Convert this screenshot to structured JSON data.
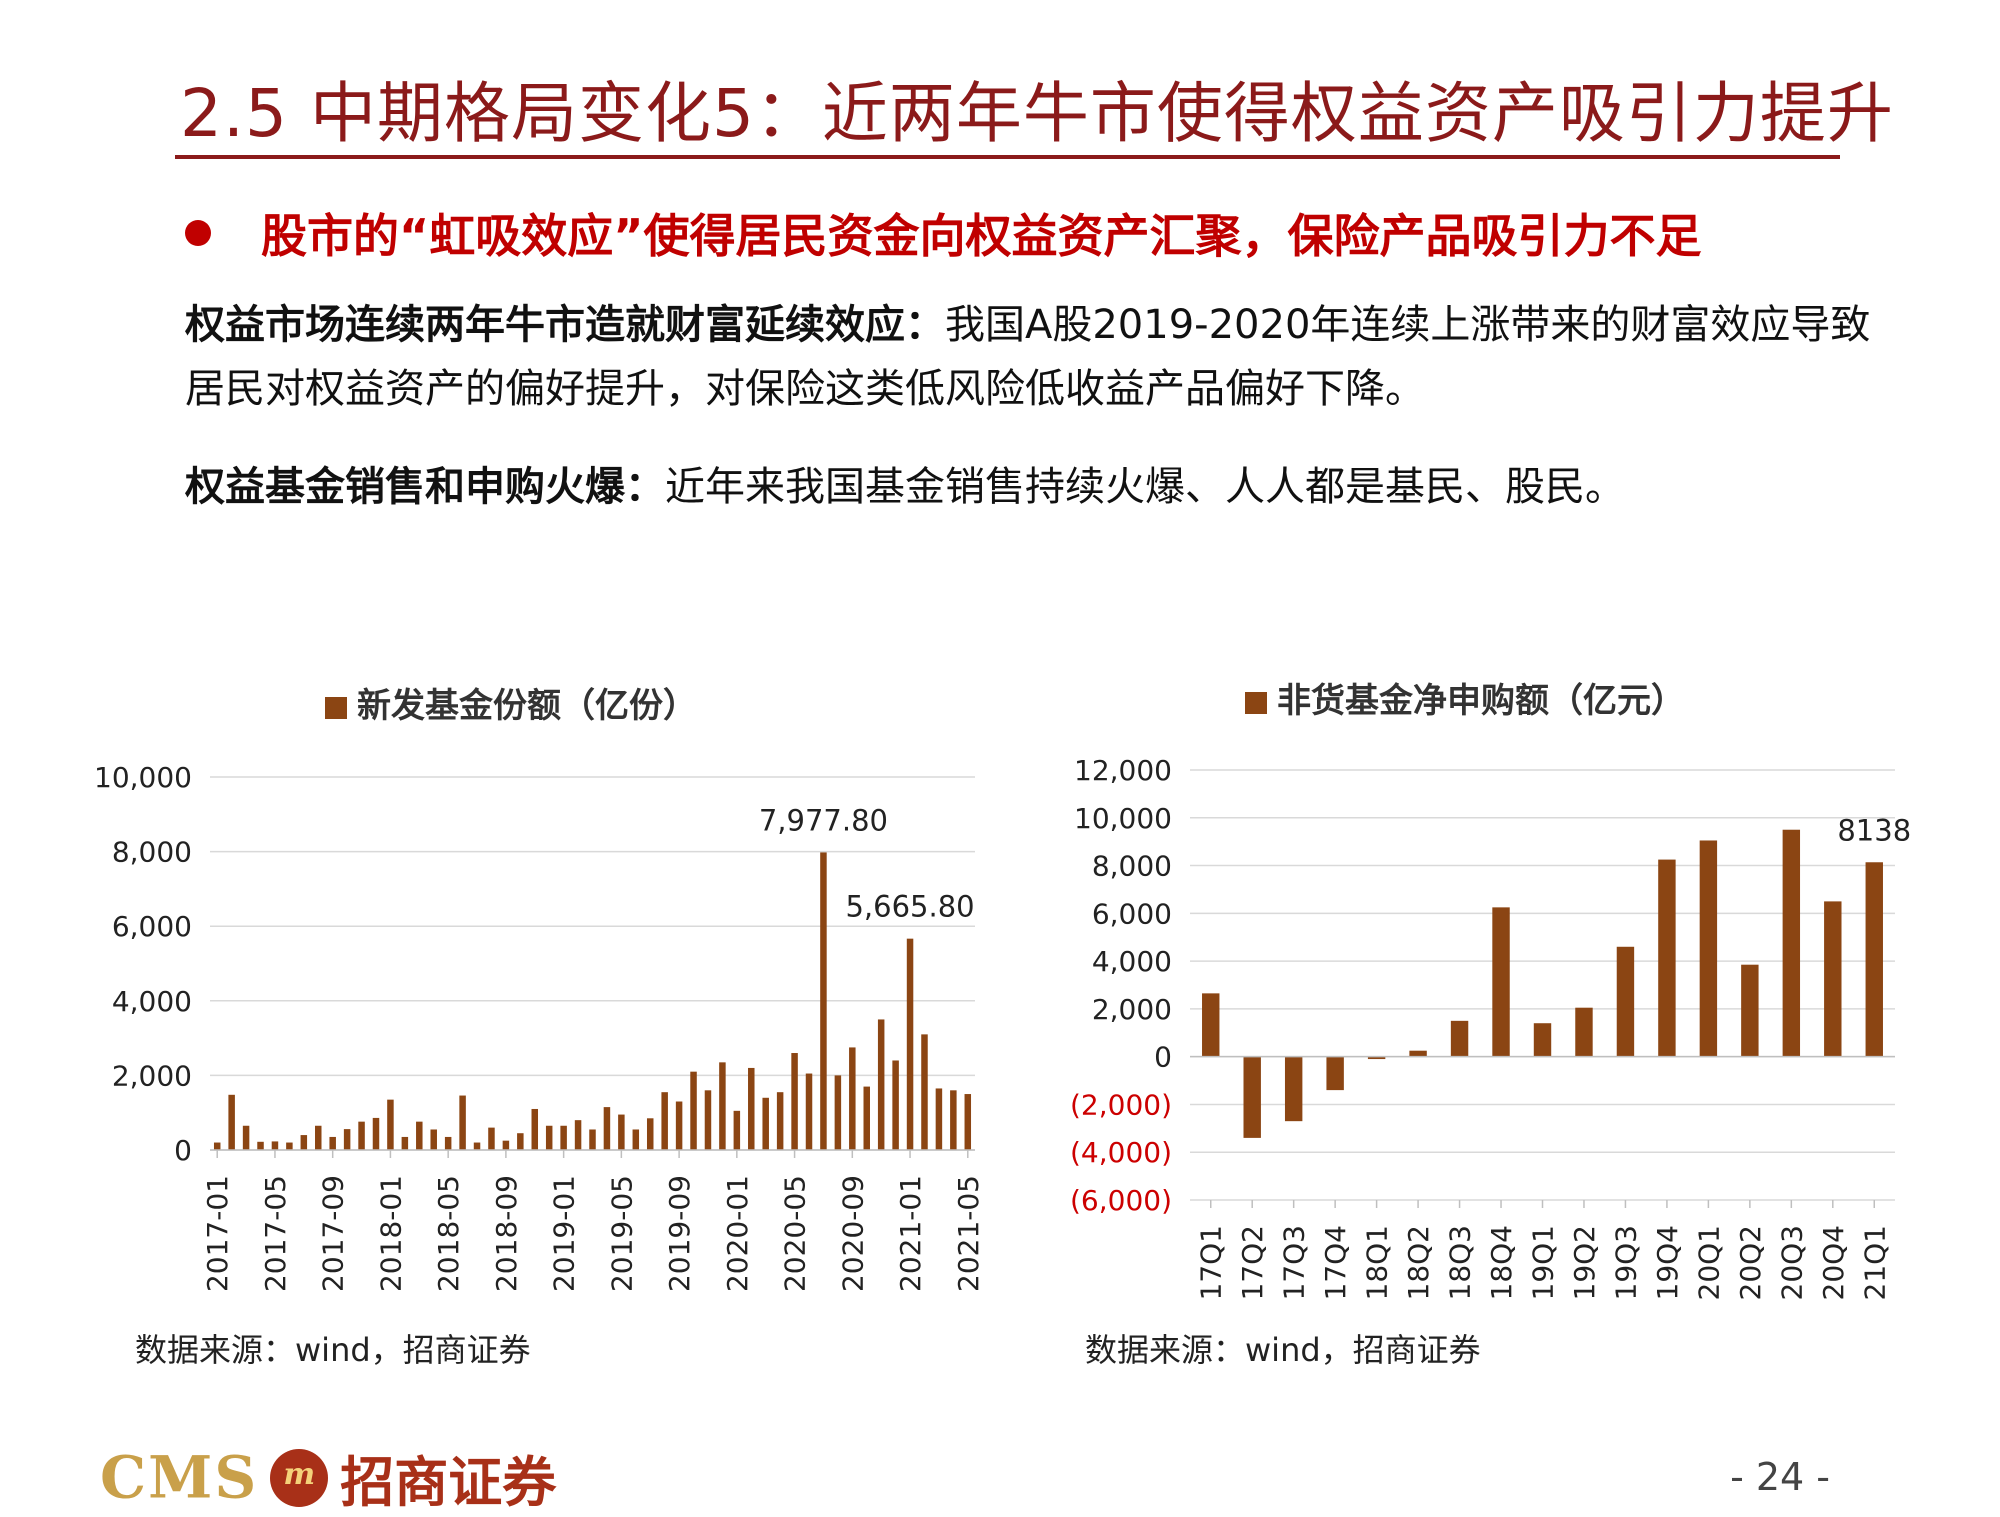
{
  "title": "2.5 中期格局变化5：近两年牛市使得权益资产吸引力提升",
  "bullet": "股市的“虹吸效应”使得居民资金向权益资产汇聚，保险产品吸引力不足",
  "para1": {
    "bold": "权益市场连续两年牛市造就财富延续效应：",
    "text": "我国A股2019-2020年连续上涨带来的财富效应导致居民对权益资产的偏好提升，对保险这类低风险低收益产品偏好下降。"
  },
  "para2": {
    "bold": "权益基金销售和申购火爆：",
    "text": "近年来我国基金销售持续火爆、人人都是基民、股民。"
  },
  "chart_data": [
    {
      "type": "bar",
      "legend": "新发基金份额（亿份）",
      "color": "#8b4513",
      "ylim": [
        0,
        10000
      ],
      "yticks": [
        "0",
        "2,000",
        "4,000",
        "6,000",
        "8,000",
        "10,000"
      ],
      "x_tick_labels": [
        "2017-01",
        "2017-05",
        "2017-09",
        "2018-01",
        "2018-05",
        "2018-09",
        "2019-01",
        "2019-05",
        "2019-09",
        "2020-01",
        "2020-05",
        "2020-09",
        "2021-01",
        "2021-05"
      ],
      "categories": [
        "2017-01",
        "2017-02",
        "2017-03",
        "2017-04",
        "2017-05",
        "2017-06",
        "2017-07",
        "2017-08",
        "2017-09",
        "2017-10",
        "2017-11",
        "2017-12",
        "2018-01",
        "2018-02",
        "2018-03",
        "2018-04",
        "2018-05",
        "2018-06",
        "2018-07",
        "2018-08",
        "2018-09",
        "2018-10",
        "2018-11",
        "2018-12",
        "2019-01",
        "2019-02",
        "2019-03",
        "2019-04",
        "2019-05",
        "2019-06",
        "2019-07",
        "2019-08",
        "2019-09",
        "2019-10",
        "2019-11",
        "2019-12",
        "2020-01",
        "2020-02",
        "2020-03",
        "2020-04",
        "2020-05",
        "2020-06",
        "2020-07",
        "2020-08",
        "2020-09",
        "2020-10",
        "2020-11",
        "2020-12",
        "2021-01",
        "2021-02",
        "2021-03",
        "2021-04",
        "2021-05"
      ],
      "values": [
        200,
        1480,
        650,
        220,
        230,
        200,
        400,
        650,
        350,
        560,
        760,
        860,
        1350,
        350,
        760,
        550,
        350,
        1460,
        200,
        600,
        250,
        450,
        1100,
        650,
        650,
        800,
        550,
        1150,
        950,
        550,
        850,
        1550,
        1300,
        2100,
        1600,
        2350,
        1050,
        2200,
        1400,
        1550,
        2600,
        2050,
        7977.8,
        2000,
        2750,
        1700,
        3500,
        2400,
        5665.8,
        3100,
        1650,
        1600,
        1500
      ],
      "annotations": [
        {
          "category": "2020-07",
          "label": "7,977.80"
        },
        {
          "category": "2021-01",
          "label": "5,665.80"
        }
      ]
    },
    {
      "type": "bar",
      "legend": "非货基金净申购额（亿元）",
      "color": "#8b4513",
      "ylim": [
        -6000,
        12000
      ],
      "yticks": [
        "(6,000)",
        "(4,000)",
        "(2,000)",
        "0",
        "2,000",
        "4,000",
        "6,000",
        "8,000",
        "10,000",
        "12,000"
      ],
      "negative_tick_color": "#cc0000",
      "categories": [
        "17Q1",
        "17Q2",
        "17Q3",
        "17Q4",
        "18Q1",
        "18Q2",
        "18Q3",
        "18Q4",
        "19Q1",
        "19Q2",
        "19Q3",
        "19Q4",
        "20Q1",
        "20Q2",
        "20Q3",
        "20Q4",
        "21Q1"
      ],
      "values": [
        2650,
        -3400,
        -2700,
        -1400,
        -100,
        250,
        1500,
        6250,
        1400,
        2050,
        4600,
        8250,
        9050,
        3850,
        9500,
        6500,
        8138
      ],
      "annotations": [
        {
          "category": "21Q1",
          "label": "8138"
        }
      ]
    }
  ],
  "source_left": "数据来源：wind，招商证券",
  "source_right": "数据来源：wind，招商证券",
  "footer": {
    "logo_latin": "CMS",
    "logo_seal": "m",
    "logo_cn": "招商证券",
    "page": "- 24 -"
  }
}
